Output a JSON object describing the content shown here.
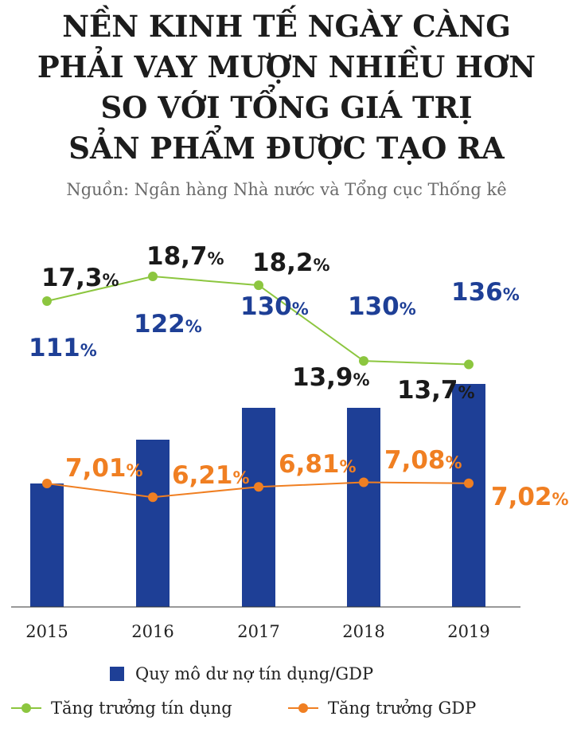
{
  "title_lines": [
    "NỀN KINH TẾ NGÀY CÀNG",
    "PHẢI VAY MƯỢN NHIỀU HƠN",
    "SO VỚI TỔNG GIÁ TRỊ",
    "SẢN PHẨM ĐƯỢC TẠO RA"
  ],
  "subtitle": "Nguồn: Ngân hàng Nhà nước và Tổng cục Thống kê",
  "colors": {
    "bar": "#1e3f96",
    "credit_line": "#8cc63f",
    "gdp_line": "#f07f22",
    "credit_label": "#1a1a1a",
    "axis": "#333333"
  },
  "chart_data": {
    "type": "bar",
    "title": "NỀN KINH TẾ NGÀY CÀNG PHẢI VAY MƯỢN NHIỀU HƠN SO VỚI TỔNG GIÁ TRỊ SẢN PHẨM ĐƯỢC TẠO RA",
    "categories": [
      "2015",
      "2016",
      "2017",
      "2018",
      "2019"
    ],
    "unit": "%",
    "grid": false,
    "legend_position": "bottom",
    "series": [
      {
        "name": "Quy mô dư nợ tín dụng/GDP",
        "type": "bar",
        "values": [
          111,
          122,
          130,
          130,
          136
        ],
        "labels": [
          "111",
          "122",
          "130",
          "130",
          "136"
        ]
      },
      {
        "name": "Tăng trưởng tín dụng",
        "type": "line",
        "values": [
          17.3,
          18.7,
          18.2,
          13.9,
          13.7
        ],
        "labels": [
          "17,3",
          "18,7",
          "18,2",
          "13,9",
          "13,7"
        ]
      },
      {
        "name": "Tăng trưởng GDP",
        "type": "line",
        "values": [
          7.01,
          6.21,
          6.81,
          7.08,
          7.02
        ],
        "labels": [
          "7,01",
          "6,21",
          "6,81",
          "7,08",
          "7,02"
        ]
      }
    ]
  }
}
